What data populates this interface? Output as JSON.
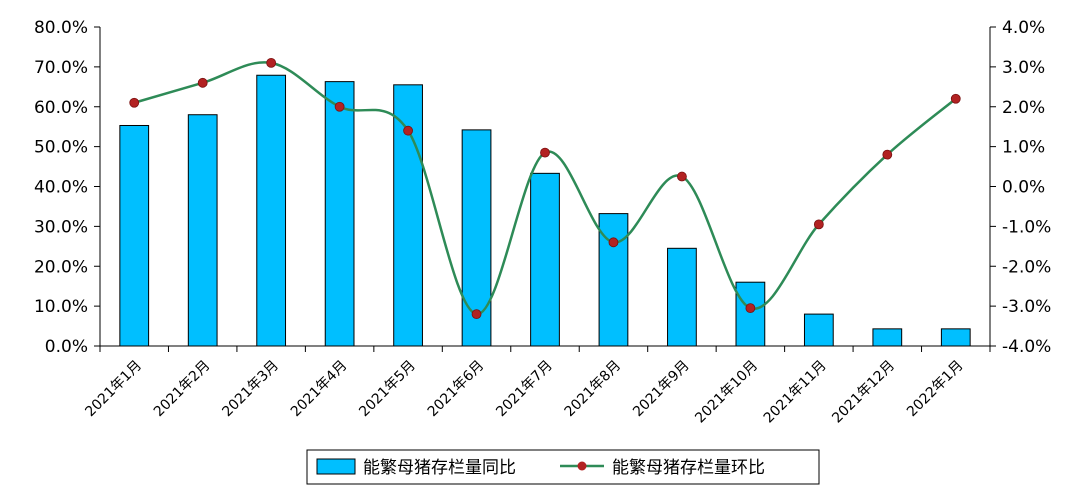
{
  "chart_data": {
    "type": "bar+line",
    "categories": [
      "2021年1月",
      "2021年2月",
      "2021年3月",
      "2021年4月",
      "2021年5月",
      "2021年6月",
      "2021年7月",
      "2021年8月",
      "2021年9月",
      "2021年10月",
      "2021年11月",
      "2021年12月",
      "2022年1月"
    ],
    "series": [
      {
        "name": "能繁母猪存栏量同比",
        "type": "bar",
        "axis": "left",
        "color": "#00BFFF",
        "values": [
          55.3,
          58.0,
          67.9,
          66.3,
          65.5,
          54.2,
          43.3,
          33.2,
          24.5,
          16.0,
          8.0,
          4.3,
          4.3
        ]
      },
      {
        "name": "能繁母猪存栏量环比",
        "type": "line",
        "axis": "right",
        "color": "#2E8B57",
        "marker_color": "#B22222",
        "values": [
          2.1,
          2.6,
          3.1,
          2.0,
          1.4,
          -3.2,
          0.85,
          -1.4,
          0.25,
          -3.05,
          -0.95,
          0.8,
          2.2
        ]
      }
    ],
    "left_axis": {
      "ylim": [
        0,
        80
      ],
      "ticks": [
        "0.0%",
        "10.0%",
        "20.0%",
        "30.0%",
        "40.0%",
        "50.0%",
        "60.0%",
        "70.0%",
        "80.0%"
      ]
    },
    "right_axis": {
      "ylim": [
        -4,
        4
      ],
      "ticks": [
        "-4.0%",
        "-3.0%",
        "-2.0%",
        "-1.0%",
        "0.0%",
        "1.0%",
        "2.0%",
        "3.0%",
        "4.0%"
      ]
    },
    "legend_position": "bottom",
    "grid": false
  }
}
